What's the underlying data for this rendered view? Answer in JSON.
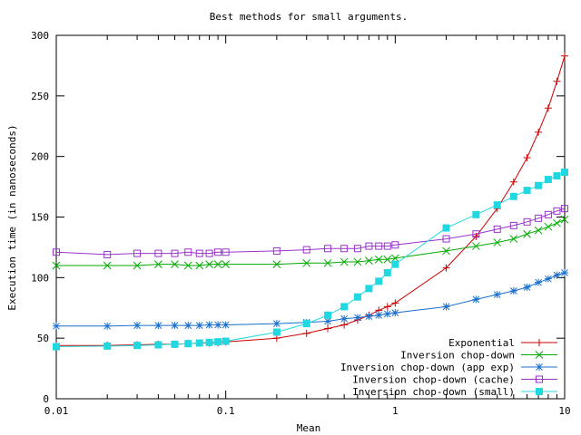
{
  "chart_data": {
    "type": "line",
    "title": "Best methods for small arguments.",
    "xlabel": "Mean",
    "ylabel": "Execution time (in nanoseconds)",
    "xscale": "log",
    "xlim": [
      0.01,
      10
    ],
    "ylim": [
      0,
      300
    ],
    "x_ticks": [
      {
        "value": 0.01,
        "label": "0.01"
      },
      {
        "value": 0.1,
        "label": "0.1"
      },
      {
        "value": 1,
        "label": "1"
      },
      {
        "value": 10,
        "label": "10"
      }
    ],
    "y_ticks": [
      {
        "value": 0,
        "label": "0"
      },
      {
        "value": 50,
        "label": "50"
      },
      {
        "value": 100,
        "label": "100"
      },
      {
        "value": 150,
        "label": "150"
      },
      {
        "value": 200,
        "label": "200"
      },
      {
        "value": 250,
        "label": "250"
      },
      {
        "value": 300,
        "label": "300"
      }
    ],
    "grid": false,
    "legend_position": "bottom-right",
    "series": [
      {
        "name": "Exponential",
        "color": "#cc0000",
        "marker": "plus",
        "x": [
          0.01,
          0.02,
          0.03,
          0.04,
          0.05,
          0.06,
          0.07,
          0.08,
          0.09,
          0.1,
          0.2,
          0.3,
          0.4,
          0.5,
          0.6,
          0.7,
          0.8,
          0.9,
          1,
          2,
          3,
          4,
          5,
          6,
          7,
          8,
          9,
          10
        ],
        "y": [
          44,
          44,
          44.5,
          45,
          45,
          45.5,
          46,
          46,
          46.5,
          47,
          50,
          54,
          58,
          61,
          65,
          69,
          73,
          76,
          79,
          108,
          134,
          157,
          179,
          199,
          220,
          240,
          262,
          283
        ]
      },
      {
        "name": "Inversion chop-down",
        "color": "#00aa00",
        "marker": "x",
        "x": [
          0.01,
          0.02,
          0.03,
          0.04,
          0.05,
          0.06,
          0.07,
          0.08,
          0.09,
          0.1,
          0.2,
          0.3,
          0.4,
          0.5,
          0.6,
          0.7,
          0.8,
          0.9,
          1,
          2,
          3,
          4,
          5,
          6,
          7,
          8,
          9,
          10
        ],
        "y": [
          110,
          110,
          110,
          111,
          111,
          110,
          110,
          111,
          111,
          111,
          111,
          112,
          112,
          113,
          113,
          114,
          115,
          115,
          116,
          122,
          126,
          129,
          132,
          136,
          139,
          142,
          145,
          148
        ]
      },
      {
        "name": "Inversion chop-down (app exp)",
        "color": "#1a6fcc",
        "marker": "star",
        "x": [
          0.01,
          0.02,
          0.03,
          0.04,
          0.05,
          0.06,
          0.07,
          0.08,
          0.09,
          0.1,
          0.2,
          0.3,
          0.4,
          0.5,
          0.6,
          0.7,
          0.8,
          0.9,
          1,
          2,
          3,
          4,
          5,
          6,
          7,
          8,
          9,
          10
        ],
        "y": [
          60,
          60,
          60.5,
          60.5,
          60.5,
          60.5,
          60.5,
          61,
          61,
          61,
          62,
          63,
          64,
          66,
          67,
          68,
          69,
          70,
          71,
          76,
          82,
          86,
          89,
          92,
          96,
          99,
          102,
          104
        ]
      },
      {
        "name": "Inversion chop-down (cache)",
        "color": "#9933cc",
        "marker": "square-open",
        "x": [
          0.01,
          0.02,
          0.03,
          0.04,
          0.05,
          0.06,
          0.07,
          0.08,
          0.09,
          0.1,
          0.2,
          0.3,
          0.4,
          0.5,
          0.6,
          0.7,
          0.8,
          0.9,
          1,
          2,
          3,
          4,
          5,
          6,
          7,
          8,
          9,
          10
        ],
        "y": [
          121,
          119,
          120,
          120,
          120,
          121,
          120,
          120,
          121,
          121,
          122,
          123,
          124,
          124,
          124,
          126,
          126,
          126,
          127,
          132,
          136,
          140,
          143,
          146,
          149,
          152,
          155,
          157
        ]
      },
      {
        "name": "Inversion chop-down (small)",
        "color": "#22d8e0",
        "marker": "square-filled",
        "x": [
          0.01,
          0.02,
          0.03,
          0.04,
          0.05,
          0.06,
          0.07,
          0.08,
          0.09,
          0.1,
          0.2,
          0.3,
          0.4,
          0.5,
          0.6,
          0.7,
          0.8,
          0.9,
          1,
          2,
          3,
          4,
          5,
          6,
          7,
          8,
          9,
          10
        ],
        "y": [
          43,
          43.5,
          44,
          44.5,
          45,
          45.5,
          46,
          46.5,
          47,
          47.5,
          55,
          62,
          69,
          76,
          84,
          91,
          97,
          104,
          111,
          141,
          152,
          160,
          167,
          172,
          176,
          181,
          184,
          187
        ]
      }
    ]
  }
}
